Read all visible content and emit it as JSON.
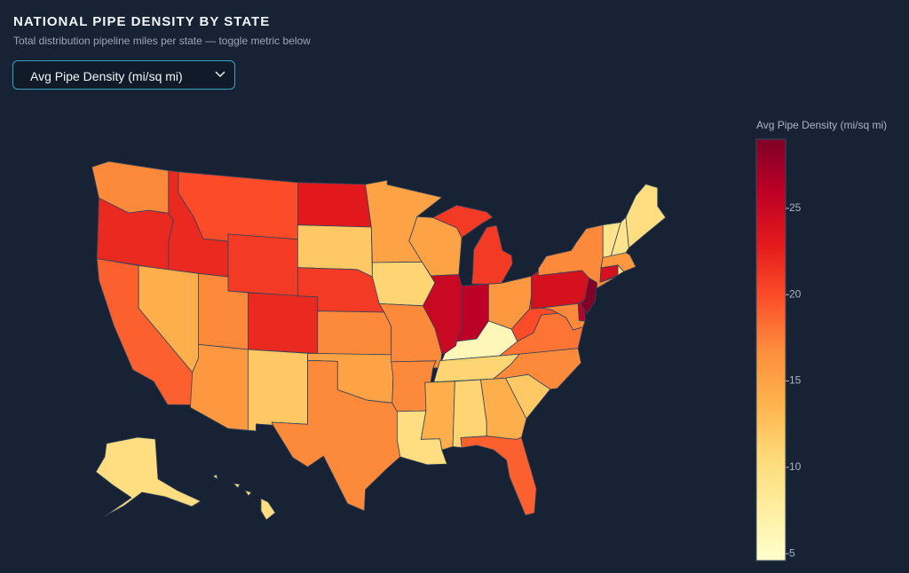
{
  "chart_data": {
    "type": "choropleth",
    "title": "NATIONAL PIPE DENSITY BY STATE",
    "subtitle": "Total distribution pipeline miles per state — toggle metric below",
    "dropdown_label": "Avg Pipe Density (mi/sq mi)",
    "colorbar_title": "Avg Pipe Density (mi/sq mi)",
    "values": [
      17,
      22,
      19,
      22,
      14,
      20,
      21,
      17,
      16,
      22,
      12,
      23,
      12,
      21,
      17,
      15,
      17,
      15,
      11,
      17,
      17,
      10,
      15,
      25,
      21,
      26,
      16,
      6,
      11,
      14,
      11,
      14,
      19,
      12,
      17,
      18,
      20,
      17,
      26,
      24,
      29,
      17,
      9,
      9,
      10,
      16,
      24,
      10,
      10,
      10
    ],
    "colorscale": [
      "#ffffcc",
      "#ffeda0",
      "#fed976",
      "#feb24c",
      "#fd8d3c",
      "#fc4e2a",
      "#e31a1c",
      "#bd0026",
      "#800026"
    ],
    "zlim": [
      4.6,
      29
    ],
    "zticks": [
      5,
      10,
      15,
      20,
      25
    ]
  }
}
